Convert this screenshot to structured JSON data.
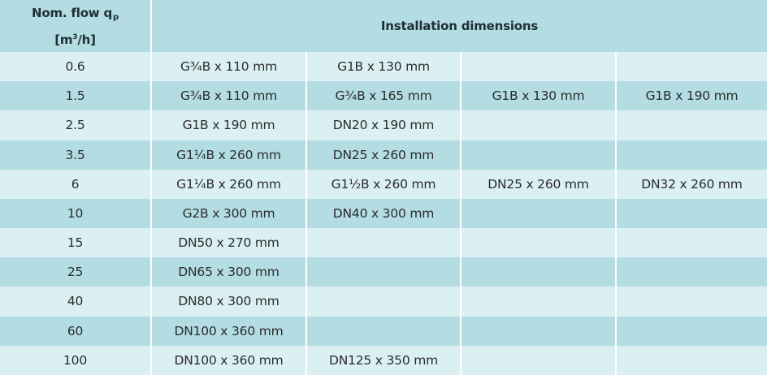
{
  "header": {
    "flow_label_line1": "Nom. flow q",
    "flow_label_sub": "p",
    "flow_unit_open": "[m",
    "flow_unit_sup": "3",
    "flow_unit_close": "/h]",
    "dimensions_label": "Installation dimensions"
  },
  "rows": [
    {
      "flow": "0.6",
      "d1": "G¾B x 110 mm",
      "d2": "G1B x 130 mm",
      "d3": "",
      "d4": ""
    },
    {
      "flow": "1.5",
      "d1": "G¾B x 110 mm",
      "d2": "G¾B x 165 mm",
      "d3": "G1B x 130 mm",
      "d4": "G1B x 190 mm"
    },
    {
      "flow": "2.5",
      "d1": "G1B x 190 mm",
      "d2": "DN20 x 190 mm",
      "d3": "",
      "d4": ""
    },
    {
      "flow": "3.5",
      "d1": "G1¼B x 260 mm",
      "d2": "DN25 x 260 mm",
      "d3": "",
      "d4": ""
    },
    {
      "flow": "6",
      "d1": "G1¼B x 260 mm",
      "d2": "G1½B x 260 mm",
      "d3": "DN25 x 260 mm",
      "d4": "DN32 x 260 mm"
    },
    {
      "flow": "10",
      "d1": "G2B x 300 mm",
      "d2": "DN40 x 300 mm",
      "d3": "",
      "d4": ""
    },
    {
      "flow": "15",
      "d1": "DN50 x 270 mm",
      "d2": "",
      "d3": "",
      "d4": ""
    },
    {
      "flow": "25",
      "d1": "DN65 x 300 mm",
      "d2": "",
      "d3": "",
      "d4": ""
    },
    {
      "flow": "40",
      "d1": "DN80 x 300 mm",
      "d2": "",
      "d3": "",
      "d4": ""
    },
    {
      "flow": "60",
      "d1": "DN100 x 360 mm",
      "d2": "",
      "d3": "",
      "d4": ""
    },
    {
      "flow": "100",
      "d1": "DN100 x 360 mm",
      "d2": "DN125 x 350 mm",
      "d3": "",
      "d4": ""
    }
  ]
}
